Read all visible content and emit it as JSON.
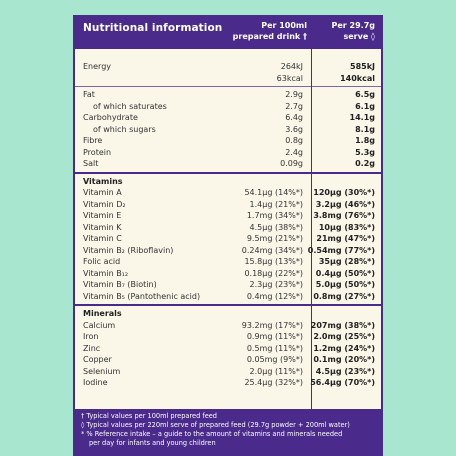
{
  "header": {
    "title": "Nutritional information",
    "col1_line1": "Per 100ml",
    "col1_line2": "prepared drink †",
    "col2_line1": "Per 29.7g",
    "col2_line2": "serve ◊"
  },
  "energy": [
    {
      "label": "Energy",
      "v1": "264kJ",
      "v2": "585kJ"
    },
    {
      "label": "",
      "v1": "63kcal",
      "v2": "140kcal"
    }
  ],
  "macros": [
    {
      "label": "Fat",
      "v1": "2.9g",
      "v2": "6.5g"
    },
    {
      "label": "of which saturates",
      "v1": "2.7g",
      "v2": "6.1g",
      "indent": true
    },
    {
      "label": "Carbohydrate",
      "v1": "6.4g",
      "v2": "14.1g"
    },
    {
      "label": "of which sugars",
      "v1": "3.6g",
      "v2": "8.1g",
      "indent": true
    },
    {
      "label": "Fibre",
      "v1": "0.8g",
      "v2": "1.8g"
    },
    {
      "label": "Protein",
      "v1": "2.4g",
      "v2": "5.3g"
    },
    {
      "label": "Salt",
      "v1": "0.09g",
      "v2": "0.2g"
    }
  ],
  "vitamins_heading": "Vitamins",
  "vitamins": [
    {
      "label": "Vitamin A",
      "v1": "54.1µg (14%*)",
      "v2": "120µg (30%*)"
    },
    {
      "label": "Vitamin D₂",
      "v1": "1.4µg (21%*)",
      "v2": "3.2µg (46%*)"
    },
    {
      "label": "Vitamin E",
      "v1": "1.7mg (34%*)",
      "v2": "3.8mg (76%*)"
    },
    {
      "label": "Vitamin K",
      "v1": "4.5µg (38%*)",
      "v2": "10µg (83%*)"
    },
    {
      "label": "Vitamin C",
      "v1": "9.5mg (21%*)",
      "v2": "21mg (47%*)"
    },
    {
      "label": "Vitamin B₂ (Riboflavin)",
      "v1": "0.24mg (34%*)",
      "v2": "0.54mg (77%*)"
    },
    {
      "label": "Folic acid",
      "v1": "15.8µg (13%*)",
      "v2": "35µg (28%*)"
    },
    {
      "label": "Vitamin B₁₂",
      "v1": "0.18µg (22%*)",
      "v2": "0.4µg (50%*)"
    },
    {
      "label": "Vitamin B₇ (Biotin)",
      "v1": "2.3µg (23%*)",
      "v2": "5.0µg (50%*)"
    },
    {
      "label": "Vitamin B₅ (Pantothenic acid)",
      "v1": "0.4mg (12%*)",
      "v2": "0.8mg (27%*)"
    }
  ],
  "minerals_heading": "Minerals",
  "minerals": [
    {
      "label": "Calcium",
      "v1": "93.2mg (17%*)",
      "v2": "207mg (38%*)"
    },
    {
      "label": "Iron",
      "v1": "0.9mg (11%*)",
      "v2": "2.0mg (25%*)"
    },
    {
      "label": "Zinc",
      "v1": "0.5mg (11%*)",
      "v2": "1.2mg (24%*)"
    },
    {
      "label": "Copper",
      "v1": "0.05mg (9%*)",
      "v2": "0.1mg (20%*)"
    },
    {
      "label": "Selenium",
      "v1": "2.0µg (11%*)",
      "v2": "4.5µg (23%*)"
    },
    {
      "label": "Iodine",
      "v1": "25.4µg (32%*)",
      "v2": "56.4µg (70%*)"
    }
  ],
  "footnotes": {
    "f1": "† Typical values per 100ml prepared feed",
    "f2": "◊ Typical values per 220ml serve of prepared feed (29.7g powder + 200ml water)",
    "f3": "* % Reference intake – a guide to the amount of vitamins and minerals needed",
    "f4": "per day for infants and young children"
  },
  "colors": {
    "background": "#a8e6cf",
    "card": "#faf6e8",
    "accent": "#4a2a8a"
  }
}
